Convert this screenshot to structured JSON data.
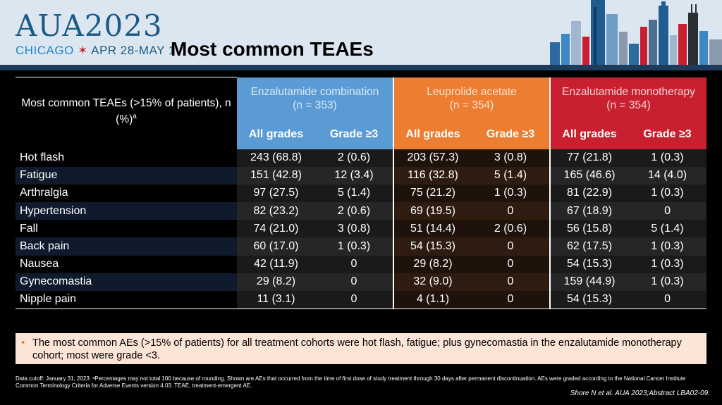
{
  "header": {
    "logo_main": "AUA2023",
    "logo_city": "CHICAGO",
    "logo_star": "✶",
    "logo_dates": "APR 28-MAY 1",
    "title": "Most common TEAEs"
  },
  "table": {
    "corner_label": "Most common TEAEs (>15% of patients), n (%)",
    "corner_sup": "a",
    "groups": [
      {
        "line1": "Enzalutamide combination",
        "line2": "(n = 353)",
        "color": "#5b9bd5"
      },
      {
        "line1": "Leuprolide acetate",
        "line2": "(n = 354)",
        "color": "#ed7d31"
      },
      {
        "line1": "Enzalutamide monotherapy",
        "line2": "(n = 354)",
        "color": "#c8202f"
      }
    ],
    "sub_headers": [
      "All grades",
      "Grade ≥3",
      "All grades",
      "Grade ≥3",
      "All grades",
      "Grade ≥3"
    ],
    "rows": [
      {
        "label": "Hot flash",
        "cells": [
          "243 (68.8)",
          "2 (0.6)",
          "203 (57.3)",
          "3 (0.8)",
          "77 (21.8)",
          "1 (0.3)"
        ]
      },
      {
        "label": "Fatigue",
        "cells": [
          "151 (42.8)",
          "12 (3.4)",
          "116 (32.8)",
          "5 (1.4)",
          "165 (46.6)",
          "14 (4.0)"
        ]
      },
      {
        "label": "Arthralgia",
        "cells": [
          "97 (27.5)",
          "5 (1.4)",
          "75 (21.2)",
          "1 (0.3)",
          "81 (22.9)",
          "1 (0.3)"
        ]
      },
      {
        "label": "Hypertension",
        "cells": [
          "82 (23.2)",
          "2 (0.6)",
          "69 (19.5)",
          "0",
          "67 (18.9)",
          "0"
        ]
      },
      {
        "label": "Fall",
        "cells": [
          "74 (21.0)",
          "3 (0.8)",
          "51 (14.4)",
          "2 (0.6)",
          "56 (15.8)",
          "5 (1.4)"
        ]
      },
      {
        "label": "Back pain",
        "cells": [
          "60 (17.0)",
          "1 (0.3)",
          "54 (15.3)",
          "0",
          "62 (17.5)",
          "1 (0.3)"
        ]
      },
      {
        "label": "Nausea",
        "cells": [
          "42 (11.9)",
          "0",
          "29 (8.2)",
          "0",
          "54 (15.3)",
          "1 (0.3)"
        ]
      },
      {
        "label": "Gynecomastia",
        "cells": [
          "29 (8.2)",
          "0",
          "32 (9.0)",
          "0",
          "159 (44.9)",
          "1 (0.3)"
        ]
      },
      {
        "label": "Nipple pain",
        "cells": [
          "11 (3.1)",
          "0",
          "4 (1.1)",
          "0",
          "54 (15.3)",
          "0"
        ]
      }
    ]
  },
  "note": {
    "bullet": "•",
    "text": "The most common AEs (>15% of patients) for all treatment cohorts were hot flash, fatigue; plus gynecomastia in the enzalutamide monotherapy cohort; most were grade <3."
  },
  "footnote": "Data cutoff: January 31, 2023. ᵃPercentages may not total 100 because of rounding. Shown are AEs that occurred from the time of first dose of study treatment through 30 days after permanent discontinuation. AEs were graded according to the National Cancer Institute Common Terminology Criteria for Adverse Events version 4.03. TEAE, treatment-emergent AE.",
  "citation": "Shore N et al. AUA 2023;Abstract LBA02-09."
}
